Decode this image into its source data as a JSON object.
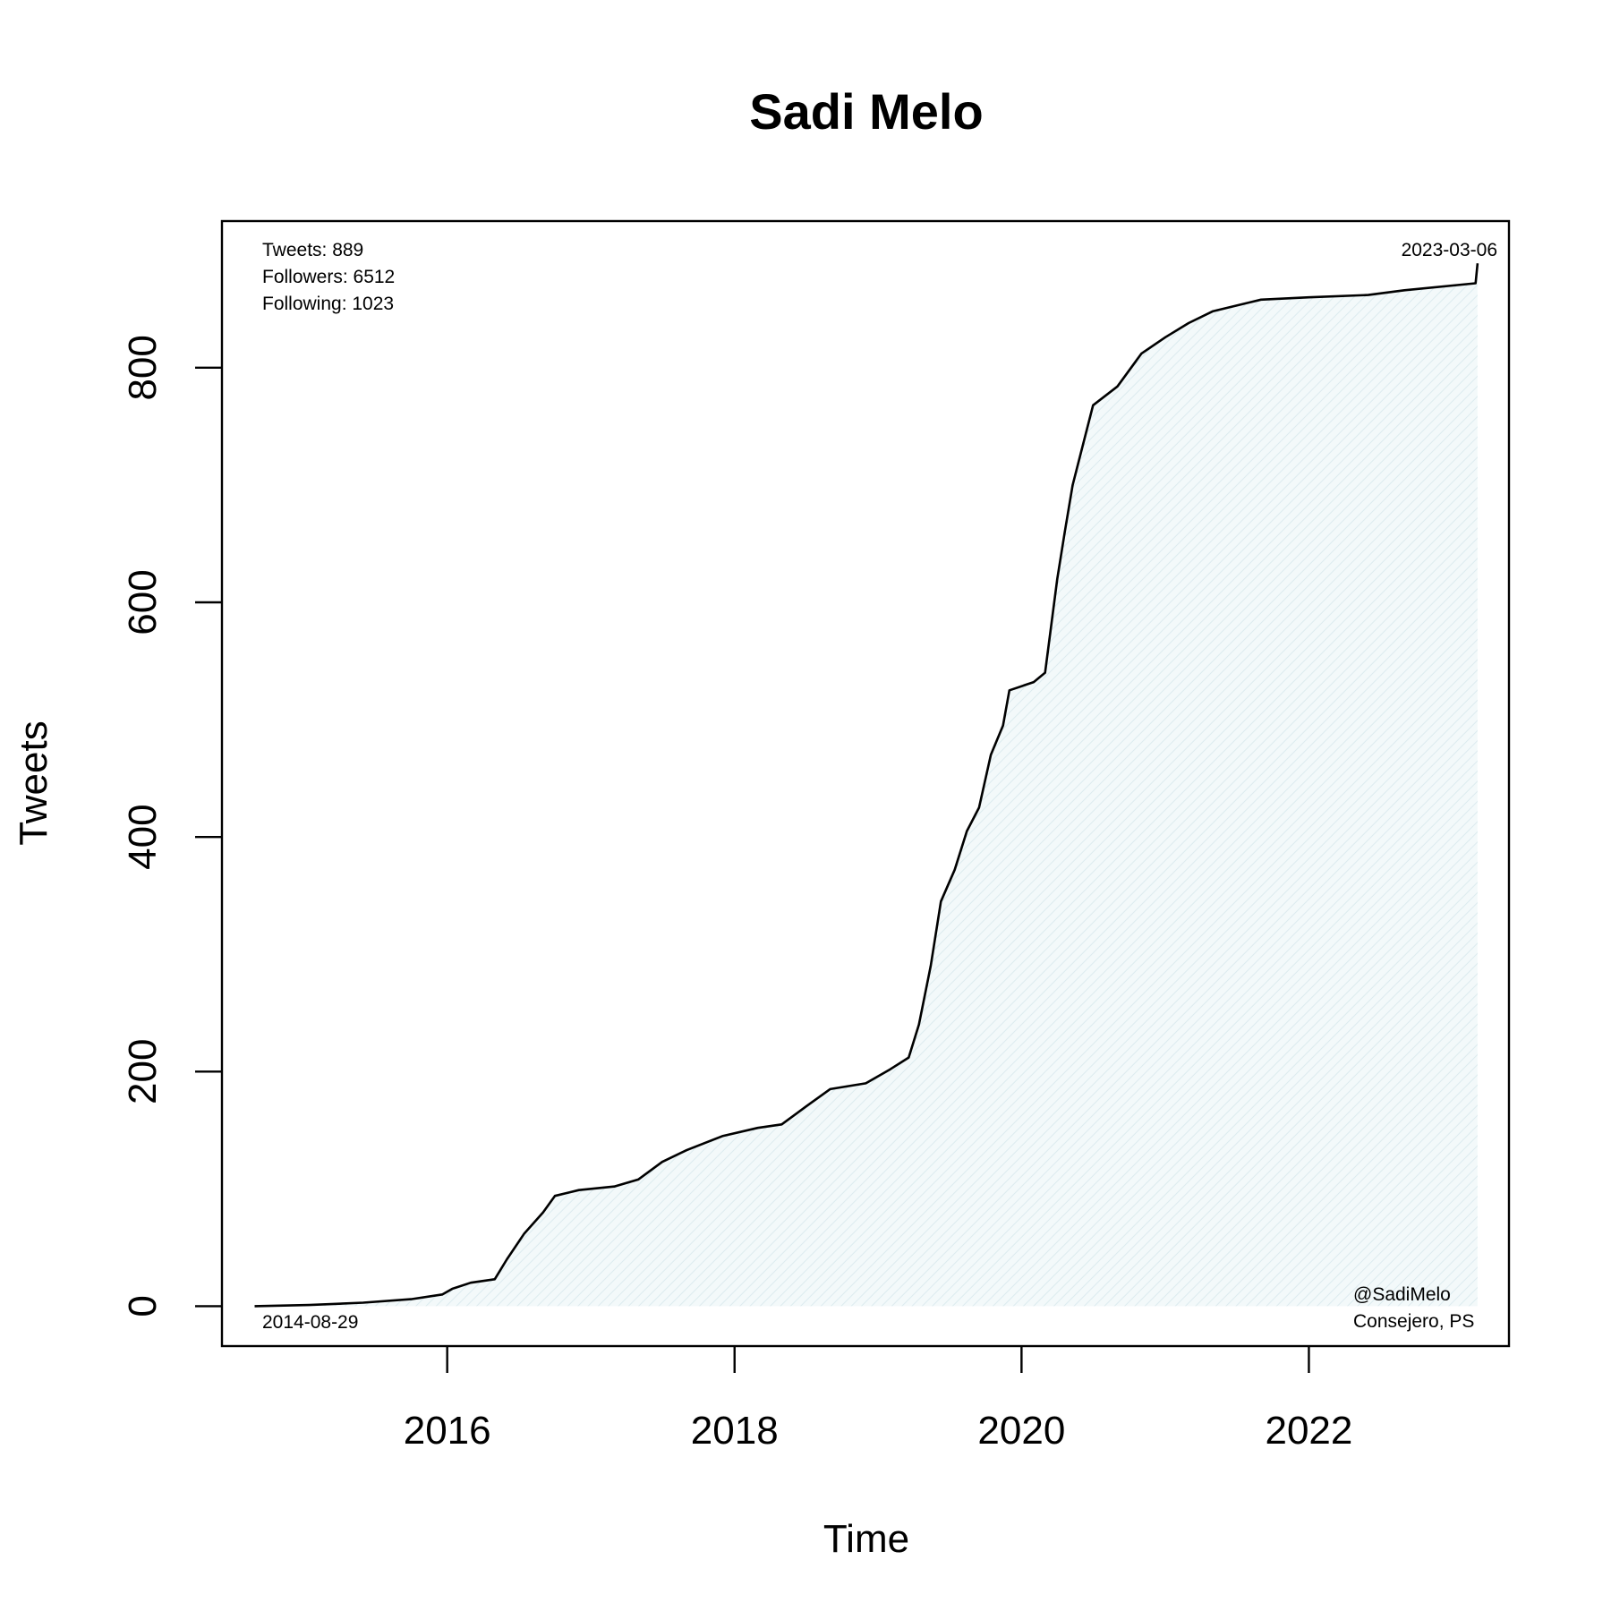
{
  "chart_data": {
    "type": "area",
    "title": "Sadi Melo",
    "xlabel": "Time",
    "ylabel": "Tweets",
    "xlim": [
      "2014-06-07",
      "2023-05-25"
    ],
    "ylim": [
      -34,
      925
    ],
    "x_ticks": [
      "2016-01-01",
      "2018-01-01",
      "2020-01-01",
      "2022-01-01"
    ],
    "x_tick_labels": [
      "2016",
      "2018",
      "2020",
      "2022"
    ],
    "y_ticks": [
      0,
      200,
      400,
      600,
      800
    ],
    "y_tick_labels": [
      "0",
      "200",
      "400",
      "600",
      "800"
    ],
    "grid": false,
    "legend": "none",
    "fill_color": "#eef6f8",
    "line_color": "#000000",
    "stats": {
      "tweets": "Tweets: 889",
      "followers": "Followers: 6512",
      "following": "Following: 1023"
    },
    "start_label": "2014-08-29",
    "end_label": "2023-03-06",
    "handle": "@SadiMelo",
    "role": "Consejero, PS",
    "series": [
      {
        "x": [
          "2014-08-29",
          "2015-01-15",
          "2015-06-01",
          "2015-10-01",
          "2015-12-20",
          "2016-01-15",
          "2016-03-01",
          "2016-05-01",
          "2016-06-01",
          "2016-07-15",
          "2016-09-01",
          "2016-10-01",
          "2016-12-01",
          "2017-03-01",
          "2017-05-01",
          "2017-07-01",
          "2017-09-01",
          "2017-12-01",
          "2018-03-01",
          "2018-05-01",
          "2018-07-01",
          "2018-09-01",
          "2018-12-01",
          "2019-02-01",
          "2019-03-20",
          "2019-04-15",
          "2019-05-15",
          "2019-06-10",
          "2019-07-15",
          "2019-08-15",
          "2019-09-15",
          "2019-10-15",
          "2019-11-15",
          "2019-12-01",
          "2020-02-01",
          "2020-03-01",
          "2020-04-01",
          "2020-04-20",
          "2020-05-10",
          "2020-07-01",
          "2020-09-01",
          "2020-11-01",
          "2021-01-01",
          "2021-03-01",
          "2021-05-01",
          "2021-09-01",
          "2022-01-01",
          "2022-06-01",
          "2022-09-01",
          "2023-03-01",
          "2023-03-06"
        ],
        "y": [
          0,
          1,
          3,
          6,
          10,
          15,
          20,
          23,
          40,
          62,
          80,
          94,
          99,
          102,
          108,
          123,
          133,
          145,
          152,
          155,
          170,
          185,
          190,
          202,
          212,
          240,
          290,
          345,
          372,
          405,
          425,
          470,
          495,
          525,
          532,
          540,
          620,
          660,
          700,
          768,
          784,
          812,
          826,
          838,
          848,
          858,
          860,
          862,
          866,
          872,
          889
        ]
      }
    ]
  }
}
